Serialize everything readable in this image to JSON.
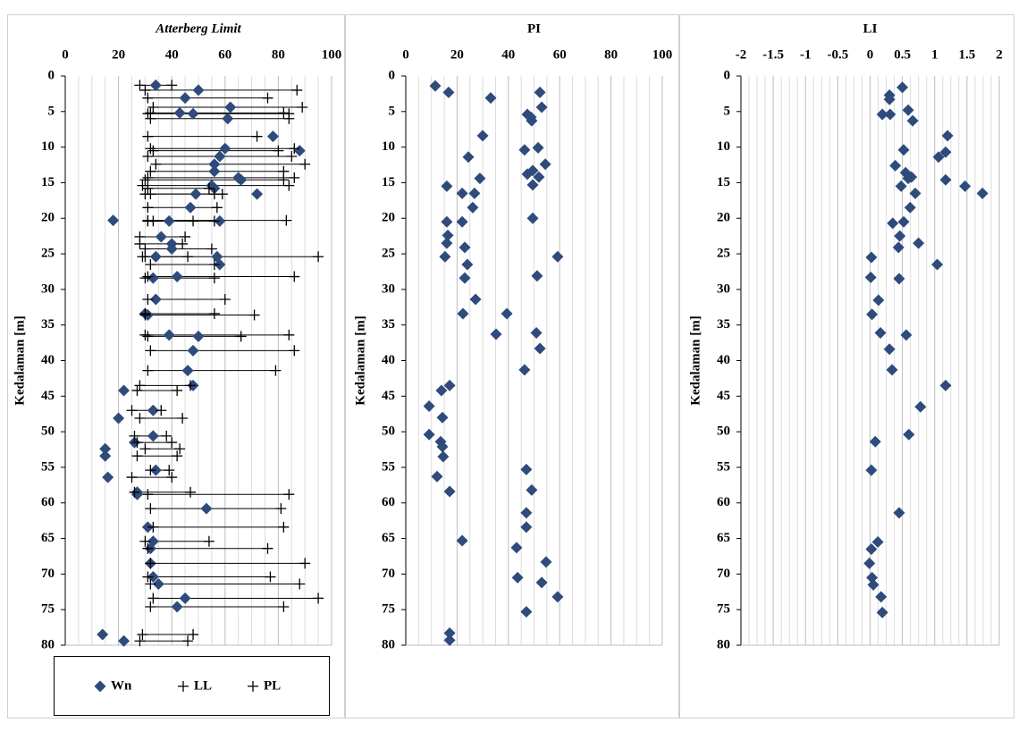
{
  "chart_data": [
    {
      "type": "scatter",
      "title": "Atterberg Limit",
      "title_style": "italic",
      "y_label": "Kedalaman [m]",
      "xlim": [
        0,
        100
      ],
      "xticks": [
        0,
        20,
        40,
        60,
        80,
        100
      ],
      "ylim": [
        0,
        80
      ],
      "yticks": [
        0,
        5,
        10,
        15,
        20,
        25,
        30,
        35,
        40,
        45,
        50,
        55,
        60,
        65,
        70,
        75,
        80
      ],
      "y_inverted": true,
      "x_axis_position": "top",
      "grid": true,
      "range_bars": true,
      "legend": "bottom",
      "series": [
        {
          "name": "Wn",
          "marker": "diamond",
          "color": "#2f4b7c",
          "x": [
            34,
            50,
            45,
            62,
            43,
            48,
            61,
            78,
            60,
            88,
            58,
            56,
            56,
            65,
            66,
            55,
            56,
            49,
            72,
            47,
            18,
            39,
            58,
            36,
            40,
            40,
            34,
            57,
            58,
            42,
            33,
            34,
            30,
            31,
            39,
            50,
            48,
            46,
            48,
            22,
            33,
            20,
            33,
            26,
            15,
            15,
            34,
            16,
            27,
            27,
            53,
            31,
            33,
            32,
            32,
            33,
            35,
            45,
            42,
            14,
            22
          ],
          "y": [
            1.3,
            2.0,
            3.1,
            4.4,
            5.2,
            5.3,
            6.0,
            8.5,
            10.2,
            10.5,
            11.3,
            12.4,
            13.4,
            14.3,
            14.6,
            15.4,
            15.8,
            16.6,
            16.6,
            18.5,
            20.3,
            20.4,
            20.4,
            22.6,
            23.6,
            24.3,
            25.4,
            25.4,
            26.5,
            28.2,
            28.4,
            31.4,
            33.4,
            33.6,
            36.4,
            36.6,
            38.6,
            41.4,
            43.5,
            44.2,
            47.0,
            48.1,
            50.6,
            51.5,
            52.4,
            53.4,
            55.4,
            56.4,
            58.5,
            58.8,
            60.8,
            63.4,
            65.4,
            66.4,
            68.5,
            70.4,
            71.4,
            73.4,
            74.6,
            78.5,
            79.4
          ]
        },
        {
          "name": "LL",
          "marker": "plus",
          "color": "#000000",
          "x": [
            40,
            87,
            76,
            89,
            82,
            84,
            84,
            72,
            86,
            80,
            85,
            90,
            82,
            86,
            82,
            84,
            54,
            59,
            56,
            57,
            83,
            56,
            48,
            45,
            44,
            55,
            95,
            46,
            56,
            86,
            56,
            60,
            56,
            71,
            84,
            66,
            86,
            79,
            47,
            42,
            36,
            44,
            38,
            40,
            43,
            42,
            39,
            40,
            47,
            84,
            81,
            82,
            54,
            76,
            90,
            77,
            88,
            95,
            82,
            48,
            46
          ],
          "y": [
            1.3,
            2.0,
            3.1,
            4.4,
            5.2,
            5.3,
            6.0,
            8.5,
            10.2,
            10.5,
            11.3,
            12.4,
            13.4,
            14.3,
            14.6,
            15.4,
            15.8,
            16.6,
            16.6,
            18.5,
            20.3,
            20.4,
            20.4,
            22.6,
            23.6,
            24.3,
            25.4,
            25.4,
            26.5,
            28.2,
            28.4,
            31.4,
            33.4,
            33.6,
            36.4,
            36.6,
            38.6,
            41.4,
            43.5,
            44.2,
            47.0,
            48.1,
            50.6,
            51.5,
            52.4,
            53.4,
            55.4,
            56.4,
            58.5,
            58.8,
            60.8,
            63.4,
            65.4,
            66.4,
            68.5,
            70.4,
            71.4,
            73.4,
            74.6,
            78.5,
            79.4
          ]
        },
        {
          "name": "PL",
          "marker": "plus",
          "color": "#000000",
          "x": [
            28,
            30,
            31,
            33,
            32,
            31,
            32,
            31,
            32,
            33,
            31,
            34,
            32,
            31,
            30,
            29,
            31,
            32,
            30,
            31,
            31,
            31,
            33,
            28,
            28,
            30,
            30,
            29,
            32,
            31,
            30,
            31,
            30,
            30,
            30,
            31,
            32,
            31,
            28,
            27,
            25,
            28,
            26,
            27,
            30,
            27,
            32,
            25,
            26,
            31,
            32,
            33,
            30,
            31,
            32,
            31,
            32,
            33,
            32,
            29,
            28
          ],
          "y": [
            1.3,
            2.0,
            3.1,
            4.4,
            5.2,
            5.3,
            6.0,
            8.5,
            10.2,
            10.5,
            11.3,
            12.4,
            13.4,
            14.3,
            14.6,
            15.4,
            15.8,
            16.6,
            16.6,
            18.5,
            20.3,
            20.4,
            20.4,
            22.6,
            23.6,
            24.3,
            25.4,
            25.4,
            26.5,
            28.2,
            28.4,
            31.4,
            33.4,
            33.6,
            36.4,
            36.6,
            38.6,
            41.4,
            43.5,
            44.2,
            47.0,
            48.1,
            50.6,
            51.5,
            52.4,
            53.4,
            55.4,
            56.4,
            58.5,
            58.8,
            60.8,
            63.4,
            65.4,
            66.4,
            68.5,
            70.4,
            71.4,
            73.4,
            74.6,
            78.5,
            79.4
          ]
        }
      ]
    },
    {
      "type": "scatter",
      "title": "PI",
      "y_label": "Kedalaman [m]",
      "xlim": [
        0,
        100
      ],
      "xticks": [
        0,
        20,
        40,
        60,
        80,
        100
      ],
      "ylim": [
        0,
        80
      ],
      "yticks": [
        0,
        5,
        10,
        15,
        20,
        25,
        30,
        35,
        40,
        45,
        50,
        55,
        60,
        65,
        70,
        75,
        80
      ],
      "y_inverted": true,
      "x_axis_position": "top",
      "grid": true,
      "series": [
        {
          "marker": "diamond",
          "color": "#2f4b7c",
          "x": [
            11.5,
            16.7,
            52.3,
            33.1,
            53,
            47.4,
            48.8,
            49.1,
            30,
            51.6,
            46.3,
            24.4,
            54.4,
            28.9,
            51.9,
            49.5,
            47.4,
            49.5,
            16,
            22,
            26.8,
            26.1,
            49.5,
            16,
            22,
            16.4,
            16,
            23,
            59.2,
            15.3,
            24,
            51.2,
            23,
            27.2,
            22.3,
            39.4,
            50.9,
            35.2,
            52.3,
            46.3,
            17.1,
            13.9,
            9.1,
            14.3,
            9.1,
            13.6,
            14.3,
            14.6,
            47,
            12.2,
            49.1,
            17.1,
            47,
            47,
            22,
            43.2,
            54.7,
            43.6,
            53,
            59.2,
            47,
            17.1,
            17.1
          ],
          "y": [
            1.4,
            2.3,
            2.3,
            3.1,
            4.4,
            5.4,
            5.8,
            6.3,
            8.4,
            10.1,
            10.4,
            11.4,
            12.4,
            14.4,
            14.2,
            13.3,
            13.8,
            15.3,
            15.5,
            16.5,
            16.5,
            18.5,
            20,
            20.5,
            20.5,
            22.4,
            23.5,
            24.1,
            25.4,
            25.4,
            26.5,
            28.1,
            28.4,
            31.4,
            33.4,
            33.4,
            36.1,
            36.3,
            38.3,
            41.3,
            43.5,
            44.2,
            46.4,
            48,
            50.4,
            51.4,
            52.1,
            53.5,
            55.3,
            56.3,
            58.2,
            58.4,
            61.4,
            63.4,
            65.3,
            66.3,
            68.3,
            70.5,
            71.2,
            73.2,
            75.3,
            78.3,
            79.3
          ]
        }
      ]
    },
    {
      "type": "scatter",
      "title": "LI",
      "y_label": "Kedalaman [m]",
      "xlim": [
        -2,
        2
      ],
      "xticks": [
        -2,
        -1.5,
        -1,
        -0.5,
        0,
        0.5,
        1,
        1.5,
        2
      ],
      "ylim": [
        0,
        80
      ],
      "yticks": [
        0,
        5,
        10,
        15,
        20,
        25,
        30,
        35,
        40,
        45,
        50,
        55,
        60,
        65,
        70,
        75,
        80
      ],
      "y_inverted": true,
      "x_axis_position": "top",
      "grid": true,
      "series": [
        {
          "marker": "diamond",
          "color": "#2f4b7c",
          "x": [
            0.5,
            0.3,
            0.3,
            0.59,
            0.19,
            0.66,
            0.31,
            1.2,
            1.17,
            0.52,
            1.06,
            0.39,
            0.55,
            0.64,
            0.59,
            0.48,
            0.7,
            1.17,
            1.47,
            1.74,
            0.62,
            0.52,
            0.35,
            0.46,
            0.75,
            0.44,
            0.02,
            1.04,
            0.01,
            0.45,
            0.13,
            0.03,
            0.16,
            0.56,
            0.3,
            0.34,
            1.17,
            0.78,
            0.6,
            0.08,
            0.02,
            0.45,
            0.12,
            0.02,
            -0.01,
            0.03,
            0.05,
            0.17,
            0.19
          ],
          "y": [
            1.6,
            2.7,
            3.3,
            4.8,
            5.4,
            6.3,
            5.4,
            8.4,
            10.7,
            10.4,
            11.4,
            12.6,
            13.6,
            14.2,
            14.4,
            15.5,
            16.5,
            14.6,
            15.5,
            16.5,
            18.5,
            20.5,
            20.7,
            22.5,
            23.5,
            24.1,
            25.5,
            26.5,
            28.3,
            28.5,
            31.5,
            33.5,
            36.1,
            36.4,
            38.4,
            41.3,
            43.5,
            46.5,
            50.4,
            51.4,
            55.4,
            61.4,
            65.5,
            66.5,
            68.5,
            70.5,
            71.5,
            73.2,
            75.4
          ]
        }
      ]
    }
  ]
}
